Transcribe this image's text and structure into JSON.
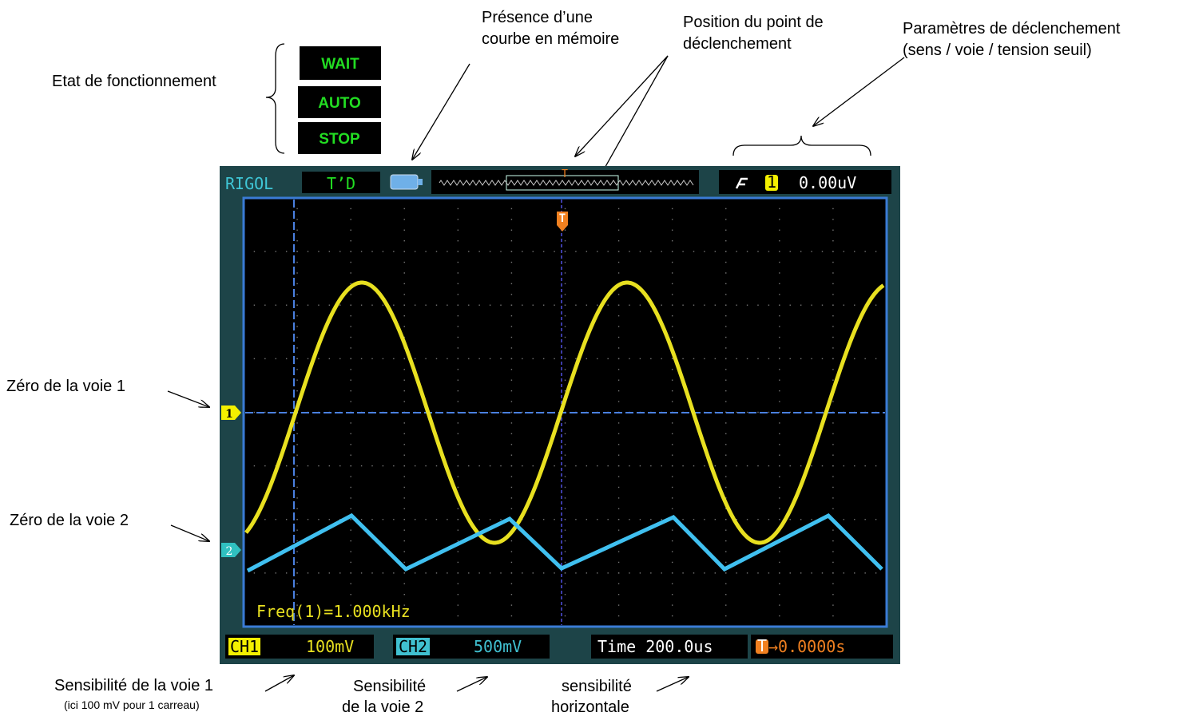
{
  "annotations": {
    "state": "Etat de fonctionnement",
    "memory": [
      "Présence d’une",
      "courbe en mémoire"
    ],
    "trigger_position": [
      "Position du point de",
      "déclenchement"
    ],
    "trigger_params": [
      "Paramètres de déclenchement",
      "(sens / voie / tension seuil)"
    ],
    "zero_ch1": "Zéro de la voie 1",
    "zero_ch2": "Zéro de la voie 2",
    "sens_ch1": [
      "Sensibilité de la voie 1",
      "(ici 100 mV pour 1 carreau)"
    ],
    "sens_ch2": [
      "Sensibilité",
      "de la voie 2"
    ],
    "sens_h": [
      "sensibilité",
      "horizontale"
    ]
  },
  "status": [
    "WAIT",
    "AUTO",
    "STOP"
  ],
  "screen": {
    "brand": "RIGOL",
    "trigger_status": "T’D",
    "memory_trigger_marker": "T",
    "trigger_marker": "T",
    "trigger_channel": "1",
    "trigger_level": "0.00uV",
    "ch1_marker": "1",
    "ch2_marker": "2",
    "measurement": "Freq(1)=1.000kHz",
    "ch1_label": "CH1",
    "ch1_scale": "100mV",
    "ch2_label": "CH2",
    "ch2_scale": "500mV",
    "time": "Time 200.0us",
    "offset_icon": "T",
    "offset": "→0.0000s"
  }
}
